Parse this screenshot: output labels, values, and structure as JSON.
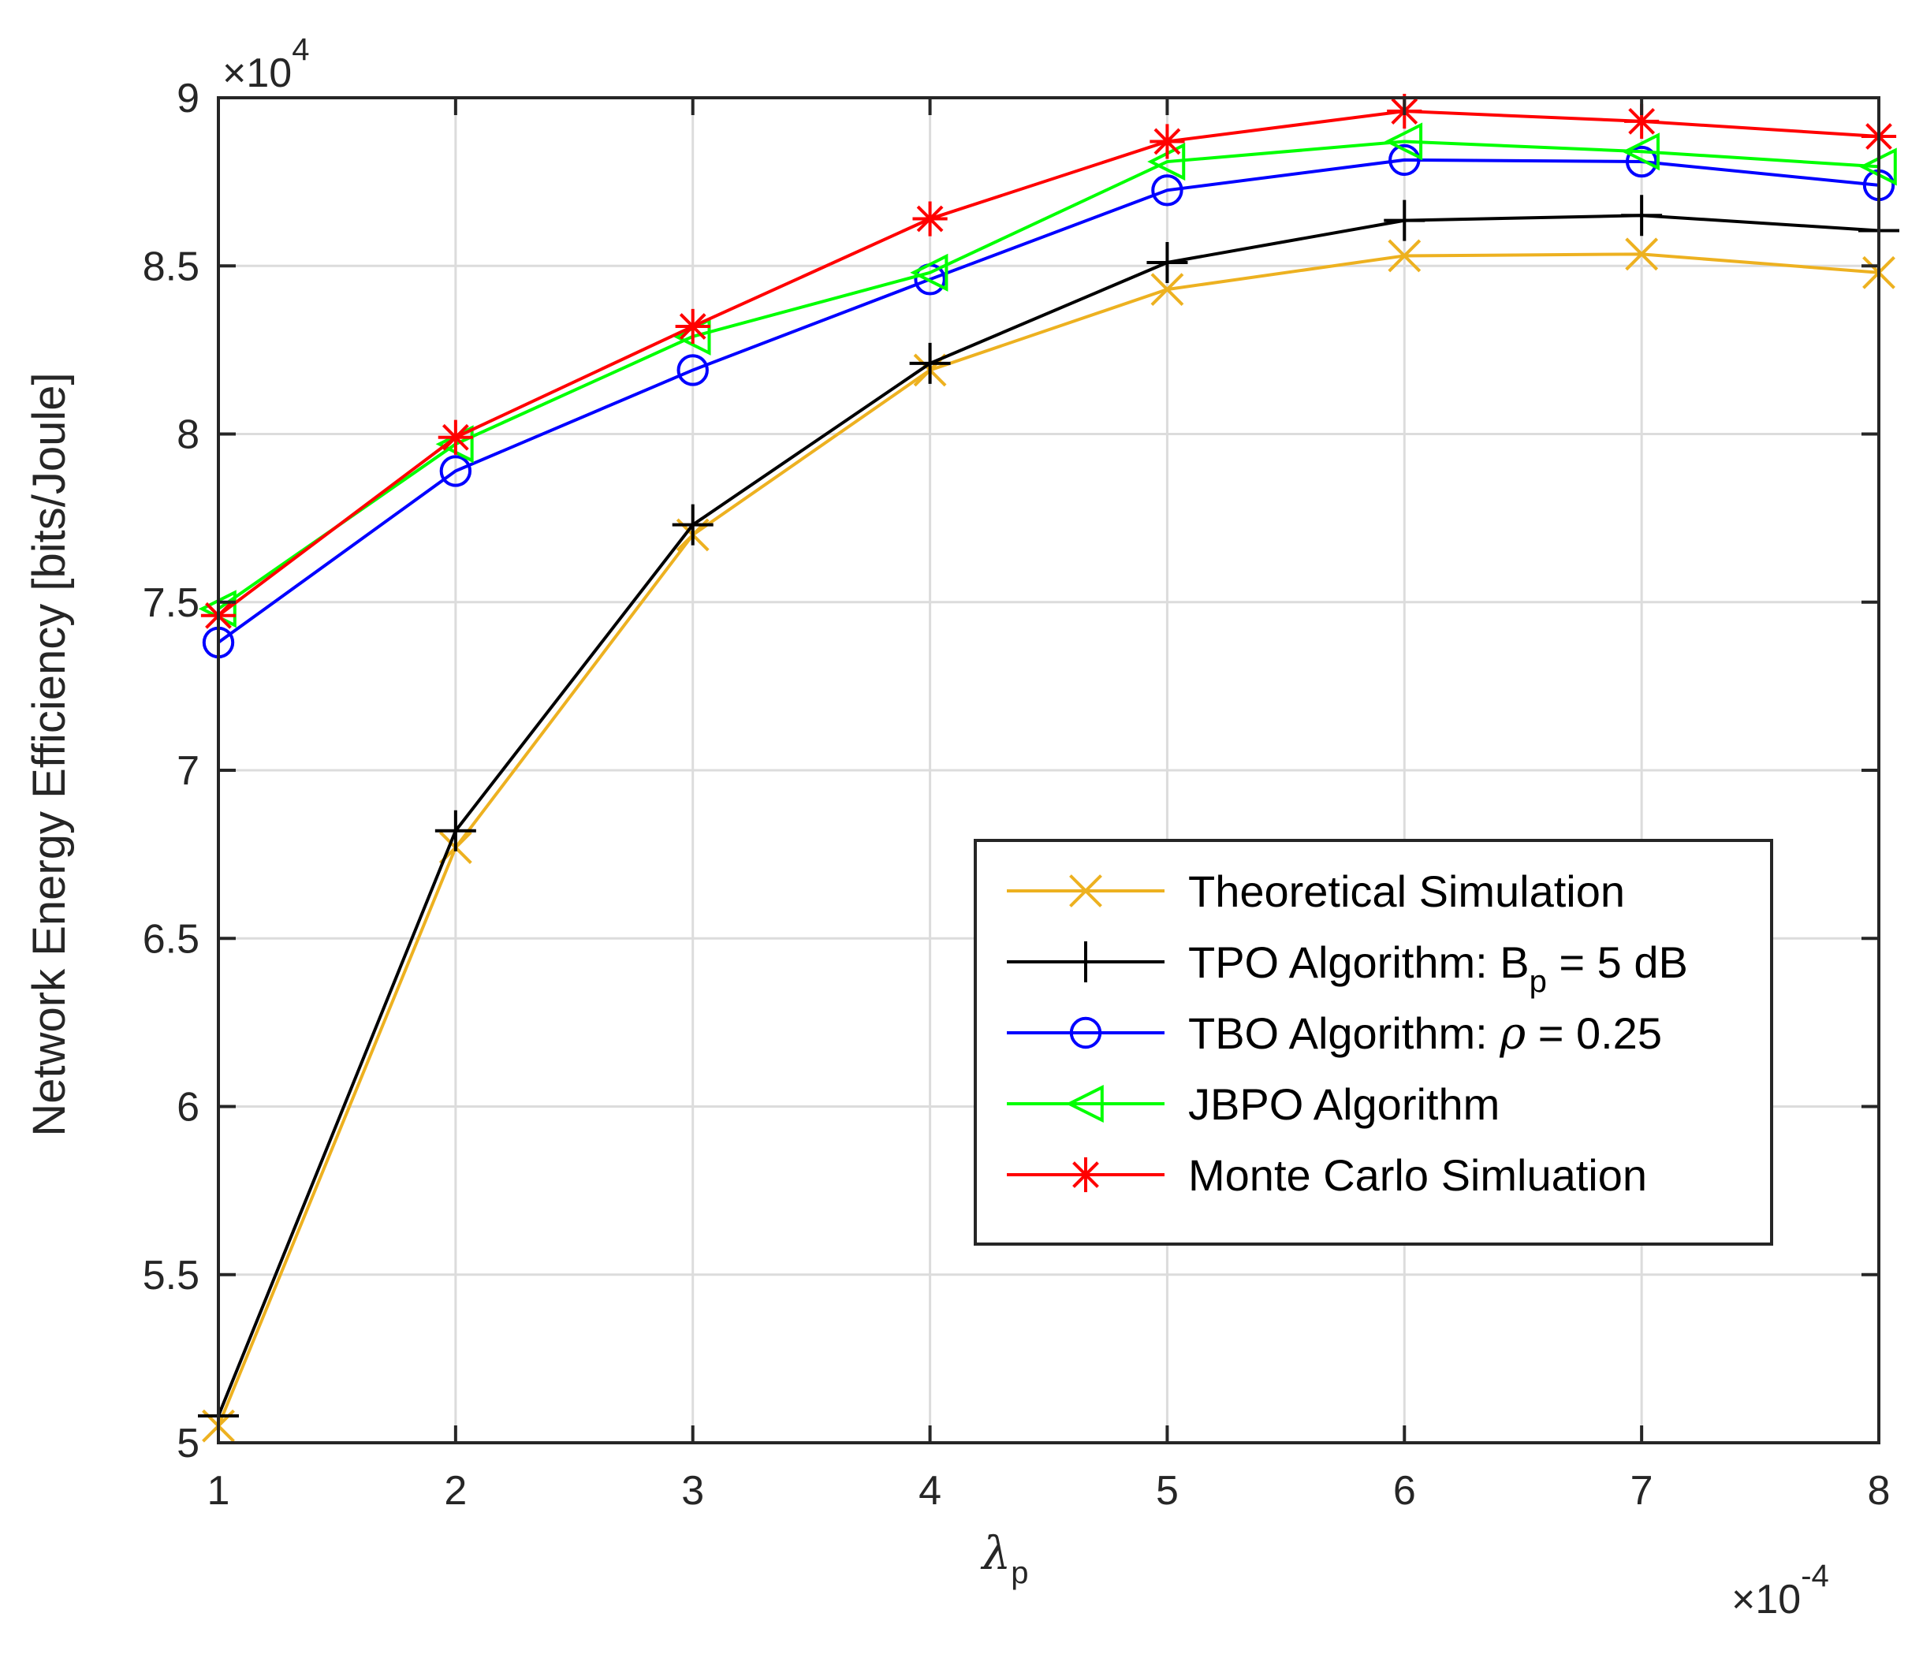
{
  "chart_data": {
    "type": "line",
    "title": "",
    "xlabel": "λ",
    "xlabel_sub": "p",
    "ylabel": "Network Energy Efficiency [bits/Joule]",
    "x_multiplier_label": "×10",
    "x_multiplier_exp": "-4",
    "y_multiplier_label": "×10",
    "y_multiplier_exp": "4",
    "xlim": [
      1,
      8
    ],
    "ylim": [
      5,
      9
    ],
    "x_ticks": [
      1,
      2,
      3,
      4,
      5,
      6,
      7,
      8
    ],
    "x_tick_labels": [
      "1",
      "2",
      "3",
      "4",
      "5",
      "6",
      "7",
      "8"
    ],
    "y_ticks": [
      5,
      5.5,
      6,
      6.5,
      7,
      7.5,
      8,
      8.5,
      9
    ],
    "y_tick_labels": [
      "5",
      "5.5",
      "6",
      "6.5",
      "7",
      "7.5",
      "8",
      "8.5",
      "9"
    ],
    "grid": true,
    "legend_position": "lower-right",
    "x": [
      1,
      2,
      3,
      4,
      5,
      6,
      7,
      8
    ],
    "series": [
      {
        "name": "Theoretical Simulation",
        "legend_parts": [
          "Theoretical Simulation"
        ],
        "color": "#EDB120",
        "marker": "x",
        "values": [
          5.05,
          6.77,
          7.7,
          8.19,
          8.43,
          8.53,
          8.535,
          8.48
        ]
      },
      {
        "name": "TPO Algorithm: B_p = 5 dB",
        "legend_parts": [
          "TPO Algorithm: B",
          "p",
          " = 5 dB"
        ],
        "color": "#000000",
        "marker": "plus",
        "values": [
          5.08,
          6.82,
          7.73,
          8.21,
          8.51,
          8.635,
          8.65,
          8.605
        ]
      },
      {
        "name": "TBO Algorithm: ρ = 0.25",
        "legend_parts": [
          "TBO Algorithm: ",
          "ρ",
          " = 0.25"
        ],
        "color": "#0000FF",
        "marker": "circle",
        "values": [
          7.38,
          7.89,
          8.19,
          8.46,
          8.725,
          8.815,
          8.81,
          8.74
        ]
      },
      {
        "name": "JBPO Algorithm",
        "legend_parts": [
          "JBPO Algorithm"
        ],
        "color": "#00FF00",
        "marker": "triangle-left",
        "values": [
          7.48,
          7.97,
          8.29,
          8.48,
          8.81,
          8.87,
          8.84,
          8.795
        ]
      },
      {
        "name": "Monte Carlo Simluation",
        "legend_parts": [
          "Monte Carlo Simluation"
        ],
        "color": "#FF0000",
        "marker": "asterisk",
        "values": [
          7.46,
          7.99,
          8.32,
          8.64,
          8.87,
          8.96,
          8.93,
          8.885
        ]
      }
    ]
  }
}
